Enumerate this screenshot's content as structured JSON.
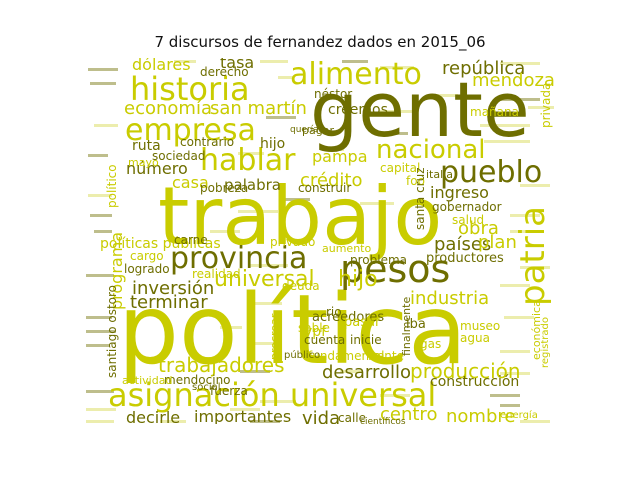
{
  "title": "7 discursos de fernandez dados en 2015_06",
  "colors": {
    "light": "#c9cc00",
    "dark": "#6e6e00",
    "mid": "#9a9b00",
    "pale": "#d4d64a"
  },
  "words": [
    {
      "text": "gente",
      "tone": "dark"
    },
    {
      "text": "trabajo",
      "tone": "light"
    },
    {
      "text": "política",
      "tone": "light"
    },
    {
      "text": "asignación universal",
      "tone": "light"
    },
    {
      "text": "provincia",
      "tone": "dark"
    },
    {
      "text": "pesos",
      "tone": "dark"
    },
    {
      "text": "historia",
      "tone": "light"
    },
    {
      "text": "alimento",
      "tone": "light"
    },
    {
      "text": "empresa",
      "tone": "light"
    },
    {
      "text": "hablar",
      "tone": "light"
    },
    {
      "text": "nacional",
      "tone": "light"
    },
    {
      "text": "pueblo",
      "tone": "dark"
    },
    {
      "text": "patria",
      "tone": "light"
    },
    {
      "text": "universal",
      "tone": "light"
    },
    {
      "text": "hijo",
      "tone": "light"
    },
    {
      "text": "trabajadores",
      "tone": "light"
    },
    {
      "text": "desarrollo",
      "tone": "dark"
    },
    {
      "text": "producción",
      "tone": "light"
    },
    {
      "text": "industria",
      "tone": "light"
    },
    {
      "text": "centro",
      "tone": "light"
    },
    {
      "text": "nombre",
      "tone": "light"
    },
    {
      "text": "inversión",
      "tone": "dark"
    },
    {
      "text": "terminar",
      "tone": "dark"
    },
    {
      "text": "programa",
      "tone": "light"
    },
    {
      "text": "economía",
      "tone": "light"
    },
    {
      "text": "san martín",
      "tone": "light"
    },
    {
      "text": "república",
      "tone": "dark"
    },
    {
      "text": "mendoza",
      "tone": "light"
    },
    {
      "text": "dólares",
      "tone": "light"
    },
    {
      "text": "tasa",
      "tone": "dark"
    },
    {
      "text": "crédito",
      "tone": "light"
    },
    {
      "text": "pampa",
      "tone": "light"
    },
    {
      "text": "casa",
      "tone": "light"
    },
    {
      "text": "número",
      "tone": "dark"
    },
    {
      "text": "ruta",
      "tone": "dark"
    },
    {
      "text": "obra",
      "tone": "light"
    },
    {
      "text": "países",
      "tone": "dark"
    },
    {
      "text": "plan",
      "tone": "light"
    },
    {
      "text": "ingreso",
      "tone": "dark"
    },
    {
      "text": "palabra",
      "tone": "dark"
    },
    {
      "text": "políticas públicas",
      "tone": "light"
    },
    {
      "text": "privado",
      "tone": "light"
    },
    {
      "text": "decirle",
      "tone": "dark"
    },
    {
      "text": "importantes",
      "tone": "dark"
    },
    {
      "text": "vida",
      "tone": "dark"
    },
    {
      "text": "construcción",
      "tone": "dark"
    },
    {
      "text": "creemos",
      "tone": "dark"
    },
    {
      "text": "sociedad",
      "tone": "dark"
    },
    {
      "text": "contrario",
      "tone": "dark"
    },
    {
      "text": "hijo",
      "tone": "dark"
    },
    {
      "text": "mañana",
      "tone": "light"
    },
    {
      "text": "capital",
      "tone": "light"
    },
    {
      "text": "foo",
      "tone": "light"
    },
    {
      "text": "italia",
      "tone": "dark"
    },
    {
      "text": "gobernador",
      "tone": "dark"
    },
    {
      "text": "salud",
      "tone": "light"
    },
    {
      "text": "santa cruz",
      "tone": "dark"
    },
    {
      "text": "carne",
      "tone": "dark"
    },
    {
      "text": "cargo",
      "tone": "light"
    },
    {
      "text": "logrado",
      "tone": "dark"
    },
    {
      "text": "realidad",
      "tone": "light"
    },
    {
      "text": "acreedores",
      "tone": "dark"
    },
    {
      "text": "problema",
      "tone": "dark"
    },
    {
      "text": "productores",
      "tone": "dark"
    },
    {
      "text": "deuda",
      "tone": "light"
    },
    {
      "text": "ypf",
      "tone": "light"
    },
    {
      "text": "iba",
      "tone": "dark"
    },
    {
      "text": "sable",
      "tone": "light"
    },
    {
      "text": "cuenta",
      "tone": "dark"
    },
    {
      "text": "pasar",
      "tone": "light"
    },
    {
      "text": "museo",
      "tone": "light"
    },
    {
      "text": "agua",
      "tone": "light"
    },
    {
      "text": "inicie",
      "tone": "dark"
    },
    {
      "text": "mendocino",
      "tone": "dark"
    },
    {
      "text": "fundamental",
      "tone": "light"
    },
    {
      "text": "frente",
      "tone": "light"
    },
    {
      "text": "actividad",
      "tone": "light"
    },
    {
      "text": "privada",
      "tone": "light"
    },
    {
      "text": "derecho",
      "tone": "dark"
    },
    {
      "text": "néstor",
      "tone": "dark"
    },
    {
      "text": "pobreza",
      "tone": "dark"
    },
    {
      "text": "aumento",
      "tone": "light"
    },
    {
      "text": "construir",
      "tone": "dark"
    },
    {
      "text": "energía",
      "tone": "light"
    },
    {
      "text": "registrado",
      "tone": "light"
    },
    {
      "text": "santiago ostoro",
      "tone": "dark"
    },
    {
      "text": "económica",
      "tone": "light"
    },
    {
      "text": "calle",
      "tone": "dark"
    },
    {
      "text": "fuerza",
      "tone": "dark"
    },
    {
      "text": "finalmente",
      "tone": "dark"
    },
    {
      "text": "procrear",
      "tone": "light"
    },
    {
      "text": "mayo",
      "tone": "light"
    },
    {
      "text": "pagar",
      "tone": "dark"
    },
    {
      "text": "querían",
      "tone": "dark"
    },
    {
      "text": "político",
      "tone": "light"
    },
    {
      "text": "gas",
      "tone": "light"
    },
    {
      "text": "social",
      "tone": "dark"
    },
    {
      "text": "rio",
      "tone": "dark"
    },
    {
      "text": "público",
      "tone": "dark"
    },
    {
      "text": "científicos",
      "tone": "dark"
    }
  ]
}
